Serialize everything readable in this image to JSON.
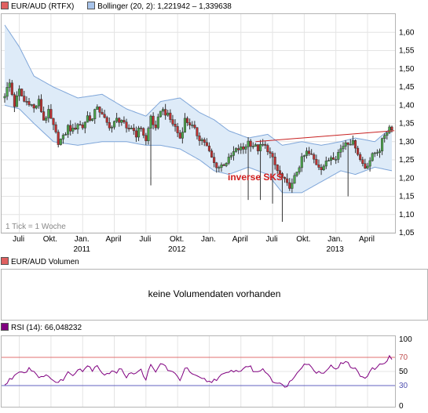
{
  "price_panel": {
    "legend": [
      {
        "label": "EUR/AUD (RTFX)",
        "color": "#e06060"
      },
      {
        "label": "Bollinger (20, 2): 1,221942 – 1,339638",
        "color": "#a8c4ea"
      }
    ],
    "tick_note": "1 Tick = 1 Woche",
    "annotation": "inverse SKS",
    "x_months": [
      "Juli",
      "Okt.",
      "Jan.",
      "April",
      "Juli",
      "Okt.",
      "Jan.",
      "April",
      "Juli",
      "Okt.",
      "Jan.",
      "April"
    ],
    "x_years": [
      "2011",
      "2012",
      "2013"
    ]
  },
  "volume_panel": {
    "legend": {
      "label": "EUR/AUD Volumen",
      "color": "#e06060"
    },
    "message": "keine Volumendaten vorhanden"
  },
  "rsi_panel": {
    "legend": {
      "label": "RSI (14): 66,048232",
      "color": "#800080"
    }
  },
  "colors": {
    "up": "#4ca84c",
    "down": "#c03030",
    "band_fill": "#deebf8",
    "band_line": "#7fa6d9",
    "trend": "#c82020",
    "rsi": "#800080",
    "rsi_upper": "#e07070",
    "rsi_lower": "#6060c0",
    "grid": "#e4e4e4"
  },
  "chart_data": [
    {
      "type": "candlestick",
      "title": "EUR/AUD (RTFX)",
      "period": "weekly",
      "ylim": [
        1.05,
        1.65
      ],
      "y_ticks": [
        "1,60",
        "1,55",
        "1,50",
        "1,45",
        "1,40",
        "1,35",
        "1,30",
        "1,25",
        "1,20",
        "1,15",
        "1,10",
        "1,05"
      ],
      "x_month_positions": [
        6,
        19,
        32,
        45,
        58,
        71,
        84,
        97,
        110,
        123,
        136,
        149
      ],
      "weeks": 160,
      "close_anchors": [
        [
          0,
          1.43
        ],
        [
          2,
          1.46
        ],
        [
          4,
          1.4
        ],
        [
          6,
          1.44
        ],
        [
          8,
          1.41
        ],
        [
          10,
          1.41
        ],
        [
          12,
          1.39
        ],
        [
          14,
          1.41
        ],
        [
          16,
          1.36
        ],
        [
          18,
          1.38
        ],
        [
          20,
          1.34
        ],
        [
          22,
          1.3
        ],
        [
          24,
          1.31
        ],
        [
          26,
          1.34
        ],
        [
          28,
          1.33
        ],
        [
          30,
          1.35
        ],
        [
          32,
          1.34
        ],
        [
          34,
          1.37
        ],
        [
          36,
          1.36
        ],
        [
          38,
          1.4
        ],
        [
          40,
          1.37
        ],
        [
          42,
          1.35
        ],
        [
          44,
          1.34
        ],
        [
          46,
          1.36
        ],
        [
          48,
          1.36
        ],
        [
          50,
          1.33
        ],
        [
          52,
          1.34
        ],
        [
          54,
          1.32
        ],
        [
          56,
          1.34
        ],
        [
          58,
          1.3
        ],
        [
          60,
          1.37
        ],
        [
          62,
          1.33
        ],
        [
          64,
          1.39
        ],
        [
          66,
          1.38
        ],
        [
          68,
          1.36
        ],
        [
          70,
          1.34
        ],
        [
          72,
          1.31
        ],
        [
          74,
          1.36
        ],
        [
          76,
          1.35
        ],
        [
          78,
          1.33
        ],
        [
          80,
          1.31
        ],
        [
          82,
          1.3
        ],
        [
          84,
          1.27
        ],
        [
          86,
          1.24
        ],
        [
          88,
          1.23
        ],
        [
          90,
          1.24
        ],
        [
          92,
          1.25
        ],
        [
          94,
          1.27
        ],
        [
          96,
          1.28
        ],
        [
          98,
          1.28
        ],
        [
          100,
          1.3
        ],
        [
          102,
          1.29
        ],
        [
          104,
          1.28
        ],
        [
          106,
          1.29
        ],
        [
          108,
          1.28
        ],
        [
          110,
          1.25
        ],
        [
          112,
          1.22
        ],
        [
          114,
          1.2
        ],
        [
          116,
          1.18
        ],
        [
          118,
          1.18
        ],
        [
          120,
          1.22
        ],
        [
          122,
          1.25
        ],
        [
          124,
          1.27
        ],
        [
          126,
          1.26
        ],
        [
          128,
          1.24
        ],
        [
          130,
          1.23
        ],
        [
          132,
          1.24
        ],
        [
          134,
          1.26
        ],
        [
          136,
          1.26
        ],
        [
          138,
          1.28
        ],
        [
          140,
          1.3
        ],
        [
          142,
          1.3
        ],
        [
          144,
          1.29
        ],
        [
          146,
          1.25
        ],
        [
          148,
          1.23
        ],
        [
          150,
          1.25
        ],
        [
          152,
          1.27
        ],
        [
          154,
          1.28
        ],
        [
          156,
          1.32
        ],
        [
          158,
          1.34
        ],
        [
          159,
          1.34
        ]
      ],
      "spikes": [
        [
          60,
          1.18
        ],
        [
          100,
          1.14
        ],
        [
          105,
          1.14
        ],
        [
          110,
          1.13
        ],
        [
          114,
          1.08
        ],
        [
          141,
          1.15
        ]
      ],
      "bollinger_upper_anchors": [
        [
          0,
          1.62
        ],
        [
          6,
          1.56
        ],
        [
          12,
          1.48
        ],
        [
          20,
          1.45
        ],
        [
          30,
          1.42
        ],
        [
          40,
          1.43
        ],
        [
          50,
          1.39
        ],
        [
          58,
          1.37
        ],
        [
          64,
          1.41
        ],
        [
          72,
          1.42
        ],
        [
          80,
          1.38
        ],
        [
          86,
          1.36
        ],
        [
          92,
          1.33
        ],
        [
          100,
          1.31
        ],
        [
          108,
          1.32
        ],
        [
          114,
          1.29
        ],
        [
          122,
          1.3
        ],
        [
          130,
          1.29
        ],
        [
          138,
          1.3
        ],
        [
          144,
          1.31
        ],
        [
          152,
          1.3
        ],
        [
          159,
          1.34
        ]
      ],
      "bollinger_lower_anchors": [
        [
          0,
          1.4
        ],
        [
          6,
          1.39
        ],
        [
          12,
          1.35
        ],
        [
          20,
          1.3
        ],
        [
          30,
          1.29
        ],
        [
          40,
          1.3
        ],
        [
          50,
          1.3
        ],
        [
          58,
          1.29
        ],
        [
          64,
          1.29
        ],
        [
          72,
          1.28
        ],
        [
          80,
          1.25
        ],
        [
          86,
          1.22
        ],
        [
          92,
          1.21
        ],
        [
          100,
          1.23
        ],
        [
          108,
          1.21
        ],
        [
          114,
          1.16
        ],
        [
          122,
          1.16
        ],
        [
          130,
          1.19
        ],
        [
          138,
          1.22
        ],
        [
          144,
          1.21
        ],
        [
          152,
          1.23
        ],
        [
          159,
          1.22
        ]
      ],
      "trendline": [
        [
          103,
          1.3
        ],
        [
          160,
          1.33
        ]
      ]
    },
    {
      "type": "line",
      "title": "RSI (14): 66,048232",
      "ylim": [
        0,
        100
      ],
      "y_ticks": [
        100,
        70,
        50,
        30,
        0
      ],
      "levels": [
        70,
        30
      ],
      "rsi_anchors": [
        [
          0,
          30
        ],
        [
          2,
          38
        ],
        [
          4,
          44
        ],
        [
          6,
          52
        ],
        [
          8,
          48
        ],
        [
          10,
          55
        ],
        [
          12,
          50
        ],
        [
          14,
          44
        ],
        [
          16,
          40
        ],
        [
          18,
          46
        ],
        [
          20,
          37
        ],
        [
          22,
          33
        ],
        [
          24,
          40
        ],
        [
          26,
          48
        ],
        [
          28,
          45
        ],
        [
          30,
          55
        ],
        [
          32,
          52
        ],
        [
          34,
          58
        ],
        [
          36,
          53
        ],
        [
          38,
          60
        ],
        [
          40,
          48
        ],
        [
          42,
          45
        ],
        [
          44,
          52
        ],
        [
          46,
          47
        ],
        [
          48,
          55
        ],
        [
          50,
          43
        ],
        [
          52,
          50
        ],
        [
          54,
          46
        ],
        [
          56,
          52
        ],
        [
          58,
          40
        ],
        [
          60,
          58
        ],
        [
          62,
          48
        ],
        [
          64,
          62
        ],
        [
          66,
          57
        ],
        [
          68,
          50
        ],
        [
          70,
          45
        ],
        [
          72,
          39
        ],
        [
          74,
          55
        ],
        [
          76,
          50
        ],
        [
          78,
          43
        ],
        [
          80,
          40
        ],
        [
          82,
          38
        ],
        [
          84,
          35
        ],
        [
          86,
          38
        ],
        [
          88,
          42
        ],
        [
          90,
          45
        ],
        [
          92,
          48
        ],
        [
          94,
          52
        ],
        [
          96,
          49
        ],
        [
          98,
          55
        ],
        [
          100,
          58
        ],
        [
          102,
          52
        ],
        [
          104,
          48
        ],
        [
          106,
          55
        ],
        [
          108,
          47
        ],
        [
          110,
          38
        ],
        [
          112,
          33
        ],
        [
          114,
          30
        ],
        [
          116,
          31
        ],
        [
          118,
          38
        ],
        [
          120,
          50
        ],
        [
          122,
          58
        ],
        [
          124,
          62
        ],
        [
          126,
          55
        ],
        [
          128,
          50
        ],
        [
          130,
          48
        ],
        [
          132,
          53
        ],
        [
          134,
          57
        ],
        [
          136,
          55
        ],
        [
          138,
          60
        ],
        [
          140,
          63
        ],
        [
          142,
          58
        ],
        [
          144,
          53
        ],
        [
          146,
          44
        ],
        [
          148,
          42
        ],
        [
          150,
          50
        ],
        [
          152,
          55
        ],
        [
          154,
          58
        ],
        [
          156,
          64
        ],
        [
          158,
          70
        ],
        [
          159,
          66
        ]
      ]
    }
  ]
}
